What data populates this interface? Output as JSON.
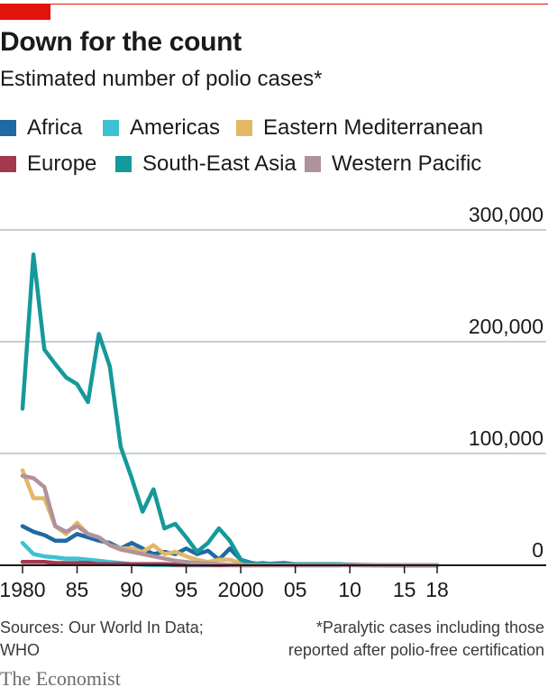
{
  "title": "Down for the count",
  "subtitle": "Estimated number of polio cases*",
  "sources": [
    "Sources: Our World In Data;",
    "WHO"
  ],
  "footnote": [
    "*Paralytic cases including those",
    "reported after polio-free certification"
  ],
  "brand": "The Economist",
  "colors": {
    "accent": "#e3120b",
    "grid": "#c2cfd7",
    "axis": "#1a1a1a"
  },
  "chart_data": {
    "type": "line",
    "title": "Down for the count",
    "subtitle": "Estimated number of polio cases*",
    "legend_placement": "top",
    "grid": true,
    "ylim": [
      0,
      300000
    ],
    "xlim": [
      1980,
      2018
    ],
    "yticks": [
      {
        "value": 0,
        "label": "0"
      },
      {
        "value": 100000,
        "label": "100,000"
      },
      {
        "value": 200000,
        "label": "200,000"
      },
      {
        "value": 300000,
        "label": "300,000"
      }
    ],
    "xticks": [
      {
        "value": 1980,
        "label": "1980"
      },
      {
        "value": 1985,
        "label": "85"
      },
      {
        "value": 1990,
        "label": "90"
      },
      {
        "value": 1995,
        "label": "95"
      },
      {
        "value": 2000,
        "label": "2000"
      },
      {
        "value": 2005,
        "label": "05"
      },
      {
        "value": 2010,
        "label": "10"
      },
      {
        "value": 2015,
        "label": "15"
      },
      {
        "value": 2018,
        "label": "18"
      }
    ],
    "x": [
      1980,
      1981,
      1982,
      1983,
      1984,
      1985,
      1986,
      1987,
      1988,
      1989,
      1990,
      1991,
      1992,
      1993,
      1994,
      1995,
      1996,
      1997,
      1998,
      1999,
      2000,
      2001,
      2002,
      2003,
      2004,
      2005,
      2006,
      2007,
      2008,
      2009,
      2010,
      2011,
      2012,
      2013,
      2014,
      2015,
      2016,
      2017,
      2018
    ],
    "series": [
      {
        "name": "Africa",
        "color": "#1f69a4",
        "values": [
          35000,
          30000,
          27000,
          22000,
          22000,
          28000,
          25000,
          22000,
          20000,
          15000,
          20000,
          15000,
          10000,
          12000,
          10000,
          15000,
          10000,
          13000,
          5000,
          15000,
          5000,
          2000,
          1000,
          1500,
          2000,
          1000,
          1000,
          500,
          1000,
          800,
          500,
          500,
          200,
          100,
          100,
          50,
          30,
          20,
          10
        ]
      },
      {
        "name": "Americas",
        "color": "#3ec1d3",
        "values": [
          20000,
          10000,
          8000,
          7000,
          6000,
          6000,
          5000,
          4000,
          3000,
          2000,
          1000,
          500,
          100,
          50,
          20,
          10,
          5,
          5,
          5,
          5,
          5,
          5,
          5,
          5,
          5,
          5,
          5,
          5,
          5,
          5,
          5,
          5,
          5,
          5,
          5,
          5,
          5,
          5,
          5
        ]
      },
      {
        "name": "Eastern Mediterranean",
        "color": "#e2b867",
        "values": [
          85000,
          60000,
          60000,
          35000,
          28000,
          38000,
          28000,
          25000,
          18000,
          15000,
          15000,
          12000,
          18000,
          10000,
          12000,
          8000,
          5000,
          3000,
          5000,
          5000,
          2000,
          1000,
          1000,
          1000,
          1000,
          1000,
          1000,
          500,
          500,
          500,
          500,
          500,
          300,
          200,
          300,
          100,
          50,
          50,
          30
        ]
      },
      {
        "name": "Europe",
        "color": "#a4384e",
        "values": [
          3000,
          3000,
          3000,
          2000,
          2000,
          2000,
          2000,
          1000,
          1000,
          1000,
          1000,
          1000,
          1000,
          1000,
          500,
          500,
          500,
          500,
          200,
          200,
          100,
          100,
          100,
          100,
          100,
          100,
          100,
          100,
          100,
          100,
          500,
          100,
          50,
          50,
          20,
          20,
          20,
          20,
          20
        ]
      },
      {
        "name": "South-East Asia",
        "color": "#15999a",
        "values": [
          140000,
          278000,
          193000,
          180000,
          168000,
          162000,
          146000,
          207000,
          178000,
          106000,
          78000,
          48000,
          68000,
          33000,
          37000,
          25000,
          12000,
          20000,
          33000,
          22000,
          5000,
          1000,
          2000,
          1000,
          1000,
          1000,
          1000,
          1000,
          1000,
          1000,
          500,
          200,
          100,
          50,
          30,
          20,
          10,
          10,
          10
        ]
      },
      {
        "name": "Western Pacific",
        "color": "#b0929c",
        "values": [
          80000,
          78000,
          70000,
          35000,
          30000,
          35000,
          28000,
          25000,
          18000,
          14000,
          12000,
          10000,
          8000,
          6000,
          4000,
          3000,
          2000,
          1500,
          1000,
          500,
          300,
          200,
          200,
          200,
          200,
          200,
          200,
          200,
          200,
          200,
          200,
          200,
          200,
          200,
          200,
          200,
          200,
          200,
          200
        ]
      }
    ]
  }
}
